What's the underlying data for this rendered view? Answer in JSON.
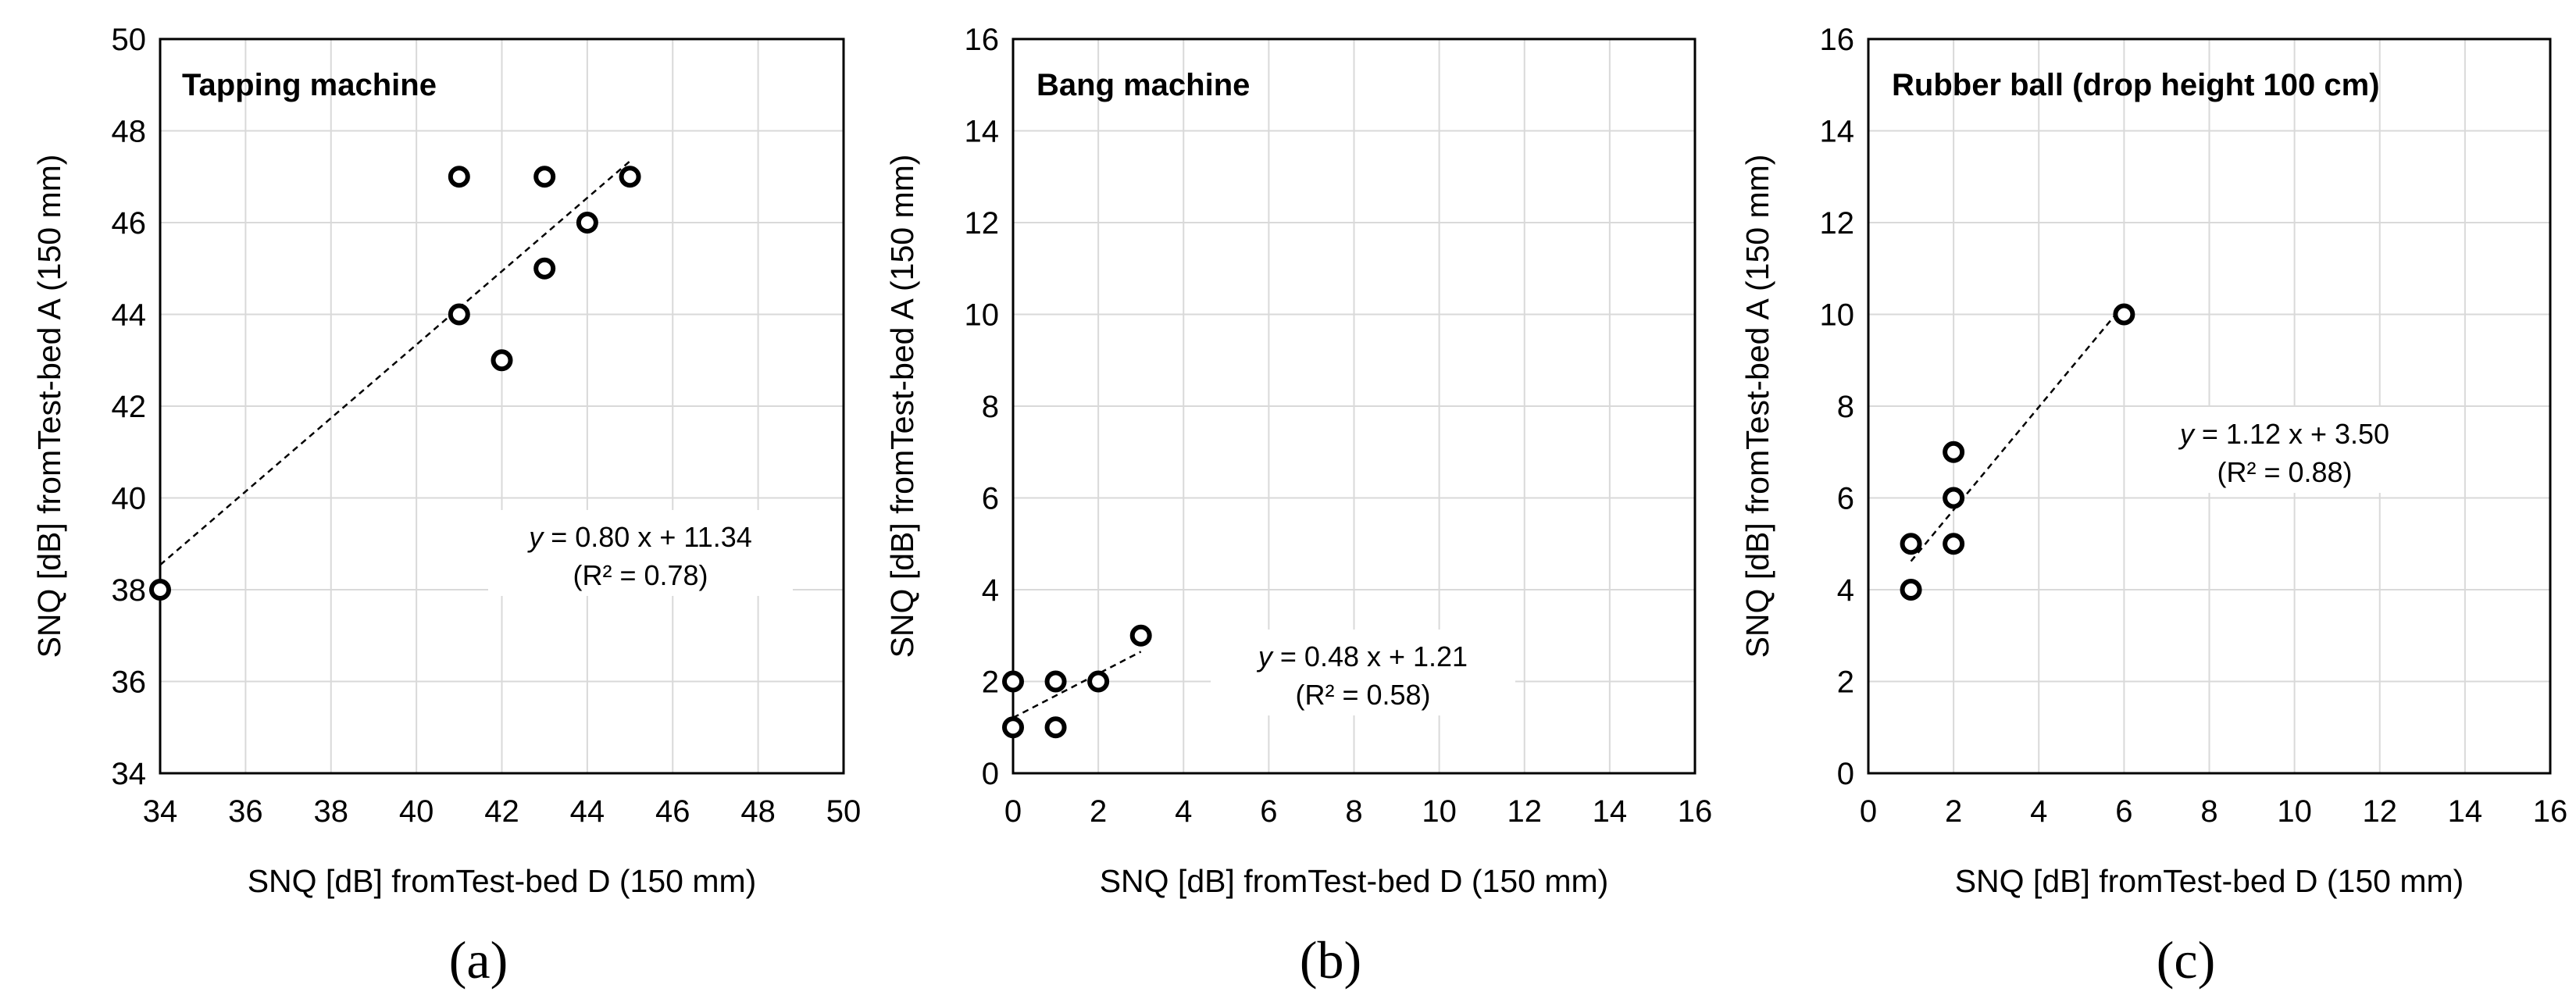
{
  "chart_data": [
    {
      "type": "scatter",
      "panel_label": "(a)",
      "title": "Tapping machine",
      "xlabel": "SNQ [dB] fromTest-bed D (150 mm)",
      "ylabel": "SNQ [dB] fromTest-bed A (150 mm)",
      "xlim": [
        34,
        50
      ],
      "ylim": [
        34,
        50
      ],
      "xticks": [
        34,
        36,
        38,
        40,
        42,
        44,
        46,
        48,
        50
      ],
      "yticks": [
        34,
        36,
        38,
        40,
        42,
        44,
        46,
        48,
        50
      ],
      "grid": true,
      "points": [
        [
          34,
          38
        ],
        [
          41,
          47
        ],
        [
          41,
          44
        ],
        [
          42,
          43
        ],
        [
          43,
          47
        ],
        [
          43,
          45
        ],
        [
          44,
          46
        ],
        [
          45,
          47
        ]
      ],
      "trendline": {
        "slope": 0.8,
        "intercept": 11.34,
        "x_range": [
          34,
          45
        ]
      },
      "equation": "= 0.80 x + 11.34",
      "r2": "(R² = 0.78)",
      "equation_position": "lower-right"
    },
    {
      "type": "scatter",
      "panel_label": "(b)",
      "title": "Bang machine",
      "xlabel": "SNQ [dB] fromTest-bed D (150 mm)",
      "ylabel": "SNQ [dB] fromTest-bed A (150 mm)",
      "xlim": [
        0,
        16
      ],
      "ylim": [
        0,
        16
      ],
      "xticks": [
        0,
        2,
        4,
        6,
        8,
        10,
        12,
        14,
        16
      ],
      "yticks": [
        0,
        2,
        4,
        6,
        8,
        10,
        12,
        14,
        16
      ],
      "grid": true,
      "points": [
        [
          0,
          1
        ],
        [
          0,
          2
        ],
        [
          1,
          1
        ],
        [
          1,
          2
        ],
        [
          2,
          2
        ],
        [
          3,
          3
        ]
      ],
      "trendline": {
        "slope": 0.48,
        "intercept": 1.21,
        "x_range": [
          0,
          3
        ]
      },
      "equation": "= 0.48 x + 1.21",
      "r2": "(R² = 0.58)",
      "equation_position": "lower-middle"
    },
    {
      "type": "scatter",
      "panel_label": "(c)",
      "title": "Rubber ball (drop height 100 cm)",
      "xlabel": "SNQ [dB] fromTest-bed D (150 mm)",
      "ylabel": "SNQ [dB] fromTest-bed A (150 mm)",
      "xlim": [
        0,
        16
      ],
      "ylim": [
        0,
        16
      ],
      "xticks": [
        0,
        2,
        4,
        6,
        8,
        10,
        12,
        14,
        16
      ],
      "yticks": [
        0,
        2,
        4,
        6,
        8,
        10,
        12,
        14,
        16
      ],
      "grid": true,
      "points": [
        [
          1,
          4
        ],
        [
          1,
          5
        ],
        [
          2,
          5
        ],
        [
          2,
          6
        ],
        [
          2,
          7
        ],
        [
          6,
          10
        ]
      ],
      "trendline": {
        "slope": 1.12,
        "intercept": 3.5,
        "x_range": [
          1,
          6
        ]
      },
      "equation": "= 1.12 x + 3.50",
      "r2": "(R² = 0.88)",
      "equation_position": "middle-right"
    }
  ]
}
